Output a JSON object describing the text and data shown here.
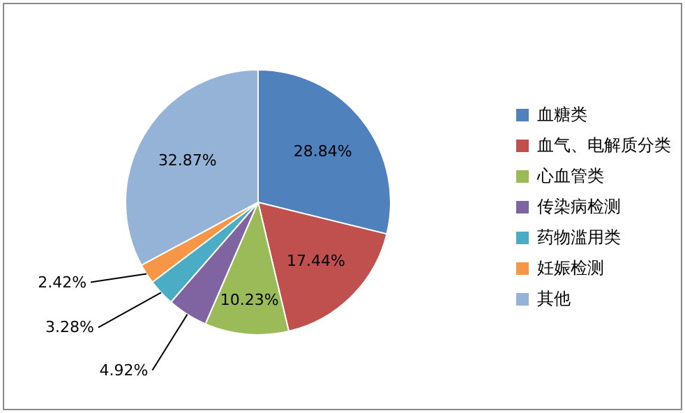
{
  "chart_data": {
    "type": "pie",
    "categories": [
      "血糖类",
      "血气、电解质分类",
      "心血管类",
      "传染病检测",
      "药物滥用类",
      "妊娠检测",
      "其他"
    ],
    "values": [
      28.84,
      17.44,
      10.23,
      4.92,
      3.28,
      2.42,
      32.87
    ],
    "value_labels": [
      "28.84%",
      "17.44%",
      "10.23%",
      "4.92%",
      "3.28%",
      "2.42%",
      "32.87%"
    ],
    "colors": [
      "#4f81bd",
      "#c0504d",
      "#9bbb59",
      "#8064a2",
      "#4bacc6",
      "#f79646",
      "#95b3d7"
    ],
    "legend": "right"
  }
}
